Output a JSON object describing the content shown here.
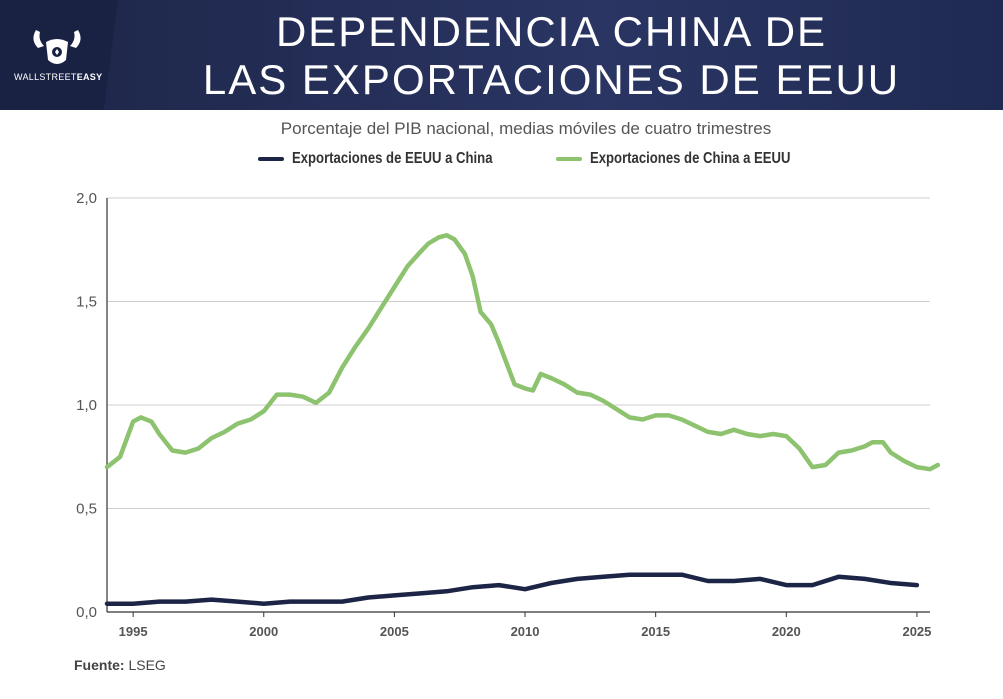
{
  "header": {
    "brand_prefix": "WALLSTREET",
    "brand_suffix": "EASY",
    "title_line1": "DEPENDENCIA CHINA DE",
    "title_line2": "LAS EXPORTACIONES DE EEUU"
  },
  "footer": {
    "source_label": "Fuente:",
    "source_value": "LSEG"
  },
  "chart_data": {
    "type": "line",
    "title": "DEPENDENCIA CHINA DE LAS EXPORTACIONES DE EEUU",
    "subtitle": "Porcentaje del PIB nacional, medias móviles de cuatro trimestres",
    "xlabel": "",
    "ylabel": "",
    "xlim": [
      1994.0,
      2025.5
    ],
    "ylim": [
      0,
      2.0
    ],
    "yticks": [
      {
        "value": 0.0,
        "label": "0,0"
      },
      {
        "value": 0.5,
        "label": "0,5"
      },
      {
        "value": 1.0,
        "label": "1,0"
      },
      {
        "value": 1.5,
        "label": "1,5"
      },
      {
        "value": 2.0,
        "label": "2,0"
      }
    ],
    "xticks": [
      {
        "value": 1995,
        "label": "1995"
      },
      {
        "value": 2000,
        "label": "2000"
      },
      {
        "value": 2005,
        "label": "2005"
      },
      {
        "value": 2010,
        "label": "2010"
      },
      {
        "value": 2015,
        "label": "2015"
      },
      {
        "value": 2020,
        "label": "2020"
      },
      {
        "value": 2025,
        "label": "2025"
      }
    ],
    "grid": true,
    "legend_position": "top",
    "series": [
      {
        "name": "Exportaciones de EEUU a China",
        "color": "#1d2547",
        "points": [
          [
            1994.0,
            0.04
          ],
          [
            1995.0,
            0.04
          ],
          [
            1996.0,
            0.05
          ],
          [
            1997.0,
            0.05
          ],
          [
            1998.0,
            0.06
          ],
          [
            1999.0,
            0.05
          ],
          [
            2000.0,
            0.04
          ],
          [
            2001.0,
            0.05
          ],
          [
            2002.0,
            0.05
          ],
          [
            2003.0,
            0.05
          ],
          [
            2004.0,
            0.07
          ],
          [
            2005.0,
            0.08
          ],
          [
            2006.0,
            0.09
          ],
          [
            2007.0,
            0.1
          ],
          [
            2008.0,
            0.12
          ],
          [
            2009.0,
            0.13
          ],
          [
            2010.0,
            0.11
          ],
          [
            2011.0,
            0.14
          ],
          [
            2012.0,
            0.16
          ],
          [
            2013.0,
            0.17
          ],
          [
            2014.0,
            0.18
          ],
          [
            2015.0,
            0.18
          ],
          [
            2016.0,
            0.18
          ],
          [
            2017.0,
            0.15
          ],
          [
            2018.0,
            0.15
          ],
          [
            2019.0,
            0.16
          ],
          [
            2020.0,
            0.13
          ],
          [
            2021.0,
            0.13
          ],
          [
            2022.0,
            0.17
          ],
          [
            2023.0,
            0.16
          ],
          [
            2024.0,
            0.14
          ],
          [
            2025.0,
            0.13
          ]
        ]
      },
      {
        "name": "Exportaciones de China a EEUU",
        "color": "#8dc26f",
        "points": [
          [
            1994.0,
            0.7
          ],
          [
            1994.5,
            0.75
          ],
          [
            1995.0,
            0.92
          ],
          [
            1995.3,
            0.94
          ],
          [
            1995.7,
            0.92
          ],
          [
            1996.0,
            0.86
          ],
          [
            1996.5,
            0.78
          ],
          [
            1997.0,
            0.77
          ],
          [
            1997.5,
            0.79
          ],
          [
            1998.0,
            0.84
          ],
          [
            1998.5,
            0.87
          ],
          [
            1999.0,
            0.91
          ],
          [
            1999.5,
            0.93
          ],
          [
            2000.0,
            0.97
          ],
          [
            2000.5,
            1.05
          ],
          [
            2001.0,
            1.05
          ],
          [
            2001.5,
            1.04
          ],
          [
            2002.0,
            1.01
          ],
          [
            2002.5,
            1.06
          ],
          [
            2003.0,
            1.18
          ],
          [
            2003.5,
            1.28
          ],
          [
            2004.0,
            1.37
          ],
          [
            2004.5,
            1.47
          ],
          [
            2005.0,
            1.57
          ],
          [
            2005.5,
            1.67
          ],
          [
            2006.0,
            1.74
          ],
          [
            2006.3,
            1.78
          ],
          [
            2006.7,
            1.81
          ],
          [
            2007.0,
            1.82
          ],
          [
            2007.3,
            1.8
          ],
          [
            2007.7,
            1.73
          ],
          [
            2008.0,
            1.62
          ],
          [
            2008.3,
            1.45
          ],
          [
            2008.7,
            1.39
          ],
          [
            2009.0,
            1.3
          ],
          [
            2009.3,
            1.2
          ],
          [
            2009.6,
            1.1
          ],
          [
            2010.0,
            1.08
          ],
          [
            2010.3,
            1.07
          ],
          [
            2010.6,
            1.15
          ],
          [
            2011.0,
            1.13
          ],
          [
            2011.5,
            1.1
          ],
          [
            2012.0,
            1.06
          ],
          [
            2012.5,
            1.05
          ],
          [
            2013.0,
            1.02
          ],
          [
            2013.5,
            0.98
          ],
          [
            2014.0,
            0.94
          ],
          [
            2014.5,
            0.93
          ],
          [
            2015.0,
            0.95
          ],
          [
            2015.5,
            0.95
          ],
          [
            2016.0,
            0.93
          ],
          [
            2016.5,
            0.9
          ],
          [
            2017.0,
            0.87
          ],
          [
            2017.5,
            0.86
          ],
          [
            2018.0,
            0.88
          ],
          [
            2018.5,
            0.86
          ],
          [
            2019.0,
            0.85
          ],
          [
            2019.5,
            0.86
          ],
          [
            2020.0,
            0.85
          ],
          [
            2020.5,
            0.79
          ],
          [
            2021.0,
            0.7
          ],
          [
            2021.5,
            0.71
          ],
          [
            2022.0,
            0.77
          ],
          [
            2022.5,
            0.78
          ],
          [
            2023.0,
            0.8
          ],
          [
            2023.3,
            0.82
          ],
          [
            2023.7,
            0.82
          ],
          [
            2024.0,
            0.77
          ],
          [
            2024.5,
            0.73
          ],
          [
            2025.0,
            0.7
          ],
          [
            2025.5,
            0.69
          ],
          [
            2025.8,
            0.71
          ]
        ]
      }
    ]
  }
}
